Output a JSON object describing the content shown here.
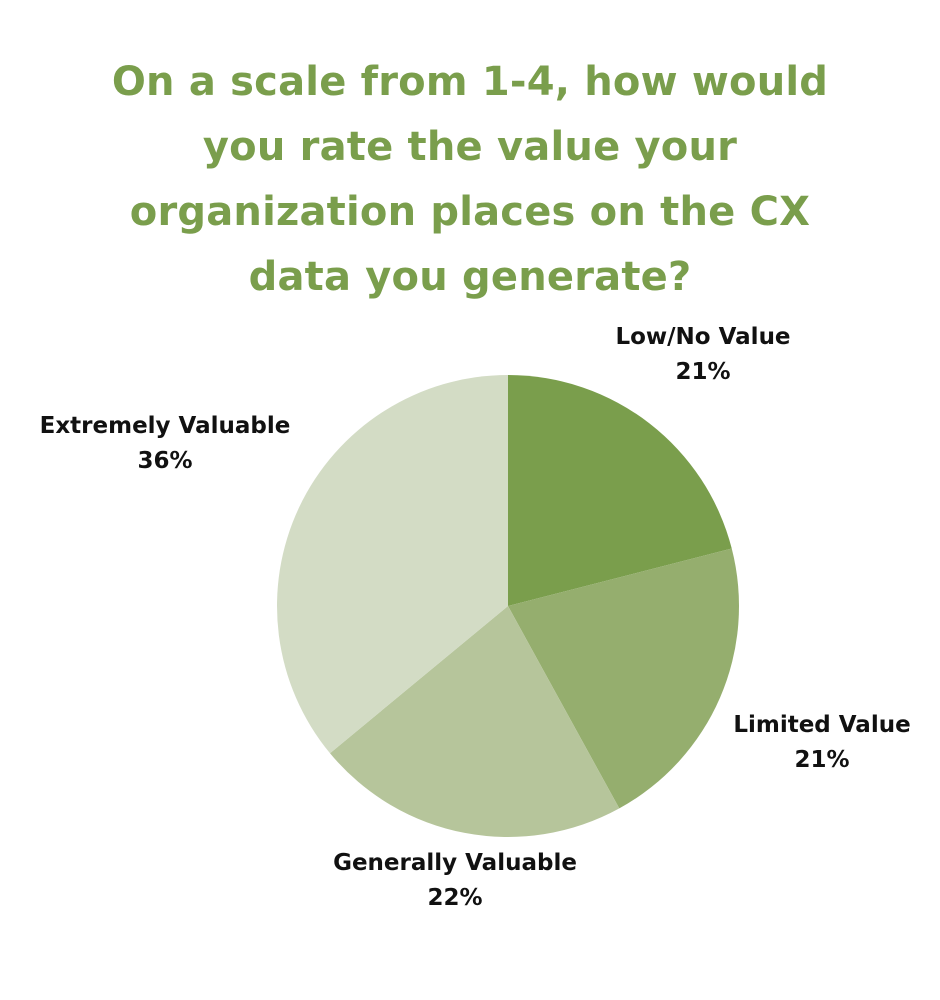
{
  "chart_data": {
    "type": "pie",
    "title": "On a scale from 1-4, how would you rate the value your organization places on the CX data you generate?",
    "slices": [
      {
        "label": "Low/No Value",
        "value": 21,
        "display": "21%",
        "color": "#7a9e4c"
      },
      {
        "label": "Limited Value",
        "value": 21,
        "display": "21%",
        "color": "#95ae6e"
      },
      {
        "label": "Generally Valuable",
        "value": 22,
        "display": "22%",
        "color": "#b6c59b"
      },
      {
        "label": "Extremely Valuable",
        "value": 36,
        "display": "36%",
        "color": "#d3dcc5"
      }
    ],
    "start_direction": "12 o'clock, clockwise",
    "legend": "none (labels beside slices)"
  }
}
